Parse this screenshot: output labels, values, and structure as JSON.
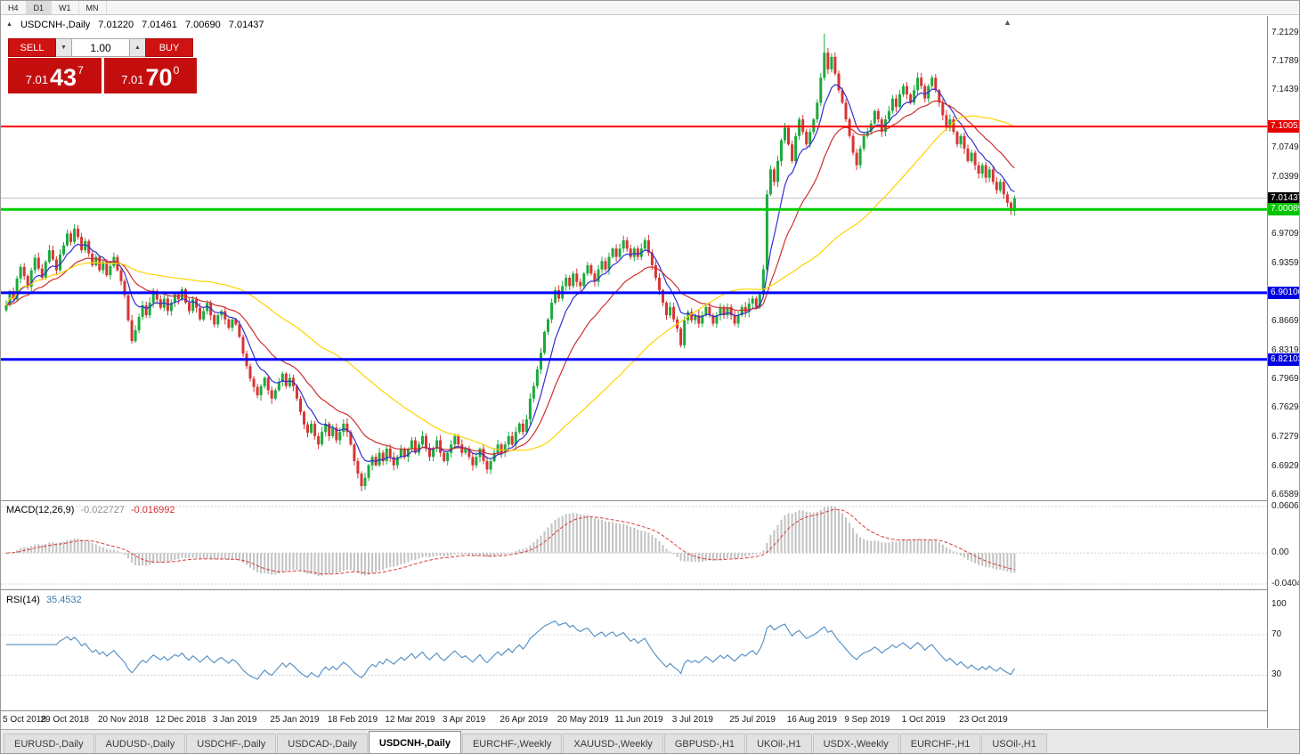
{
  "toolbar": {
    "timeframes": [
      "H4",
      "D1",
      "W1",
      "MN"
    ],
    "active": "D1"
  },
  "icons": {
    "collapse_triangle": "▲",
    "chart_shift_marker": "▲",
    "volume_down": "▼",
    "volume_up": "▲"
  },
  "chart_header": {
    "symbol": "USDCNH-,Daily",
    "open": "7.01220",
    "high": "7.01461",
    "low": "7.00690",
    "close": "7.01437"
  },
  "trade_panel": {
    "sell_label": "SELL",
    "buy_label": "BUY",
    "volume": "1.00",
    "sell_price_prefix": "7.01",
    "sell_price_main": "43",
    "sell_price_sup": "7",
    "buy_price_prefix": "7.01",
    "buy_price_main": "70",
    "buy_price_sup": "0"
  },
  "price_axis": {
    "ticks": [
      {
        "value": 7.2129,
        "label": "7.21290"
      },
      {
        "value": 7.1789,
        "label": "7.17890"
      },
      {
        "value": 7.1439,
        "label": "7.14390"
      },
      {
        "value": 7.0749,
        "label": "7.07490"
      },
      {
        "value": 7.0399,
        "label": "7.03990"
      },
      {
        "value": 6.9709,
        "label": "6.97090"
      },
      {
        "value": 6.9359,
        "label": "6.93590"
      },
      {
        "value": 6.8669,
        "label": "6.86690"
      },
      {
        "value": 6.8319,
        "label": "6.83190"
      },
      {
        "value": 6.7969,
        "label": "6.79690"
      },
      {
        "value": 6.7629,
        "label": "6.76290"
      },
      {
        "value": 6.7279,
        "label": "6.72790"
      },
      {
        "value": 6.6929,
        "label": "6.69290"
      },
      {
        "value": 6.6589,
        "label": "6.65890"
      }
    ],
    "badges": [
      {
        "value": 7.10051,
        "label": "7.10051",
        "color": "#e60000",
        "text_color": "#ffffff"
      },
      {
        "value": 7.01437,
        "label": "7.01437",
        "color": "#000000",
        "text_color": "#ffffff"
      },
      {
        "value": 7.00089,
        "label": "7.00089",
        "color": "#00c400",
        "text_color": "#ffffff"
      },
      {
        "value": 6.901,
        "label": "6.90100",
        "color": "#0000e0",
        "text_color": "#ffffff"
      },
      {
        "value": 6.82103,
        "label": "6.82103",
        "color": "#0000e0",
        "text_color": "#ffffff"
      }
    ]
  },
  "chart_data": {
    "type": "candlestick",
    "symbol": "USDCNH-",
    "timeframe": "Daily",
    "y_range": [
      6.652,
      7.233
    ],
    "current_price": 7.01437,
    "candles_per_label": 16,
    "x_labels": [
      "5 Oct 2018",
      "29 Oct 2018",
      "20 Nov 2018",
      "12 Dec 2018",
      "3 Jan 2019",
      "25 Jan 2019",
      "18 Feb 2019",
      "12 Mar 2019",
      "3 Apr 2019",
      "26 Apr 2019",
      "20 May 2019",
      "11 Jun 2019",
      "3 Jul 2019",
      "25 Jul 2019",
      "16 Aug 2019",
      "9 Sep 2019",
      "1 Oct 2019",
      "23 Oct 2019"
    ],
    "closes": [
      6.886,
      6.903,
      6.893,
      6.918,
      6.932,
      6.921,
      6.908,
      6.928,
      6.943,
      6.93,
      6.919,
      6.938,
      6.952,
      6.941,
      6.928,
      6.947,
      6.958,
      6.972,
      6.962,
      6.978,
      6.968,
      6.952,
      6.963,
      6.948,
      6.934,
      6.944,
      6.928,
      6.938,
      6.922,
      6.933,
      6.944,
      6.928,
      6.915,
      6.898,
      6.868,
      6.843,
      6.856,
      6.872,
      6.886,
      6.874,
      6.889,
      6.903,
      6.893,
      6.883,
      6.894,
      6.879,
      6.889,
      6.899,
      6.893,
      6.905,
      6.889,
      6.879,
      6.893,
      6.883,
      6.869,
      6.879,
      6.889,
      6.874,
      6.863,
      6.874,
      6.879,
      6.869,
      6.859,
      6.869,
      6.863,
      6.848,
      6.828,
      6.813,
      6.798,
      6.788,
      6.778,
      6.789,
      6.799,
      6.784,
      6.774,
      6.784,
      6.794,
      6.804,
      6.789,
      6.799,
      6.789,
      6.774,
      6.758,
      6.743,
      6.733,
      6.744,
      6.729,
      6.719,
      6.734,
      6.744,
      6.729,
      6.739,
      6.724,
      6.734,
      6.744,
      6.734,
      6.719,
      6.699,
      6.684,
      6.669,
      6.679,
      6.694,
      6.704,
      6.694,
      6.709,
      6.699,
      6.714,
      6.704,
      6.694,
      6.704,
      6.714,
      6.704,
      6.714,
      6.724,
      6.709,
      6.719,
      6.729,
      6.714,
      6.704,
      6.714,
      6.724,
      6.709,
      6.699,
      6.709,
      6.719,
      6.729,
      6.719,
      6.709,
      6.714,
      6.704,
      6.694,
      6.704,
      6.714,
      6.699,
      6.689,
      6.699,
      6.709,
      6.719,
      6.709,
      6.719,
      6.729,
      6.719,
      6.734,
      6.744,
      6.734,
      6.749,
      6.774,
      6.789,
      6.809,
      6.829,
      6.854,
      6.869,
      6.889,
      6.904,
      6.894,
      6.909,
      6.919,
      6.909,
      6.924,
      6.914,
      6.909,
      6.924,
      6.934,
      6.924,
      6.914,
      6.929,
      6.939,
      6.929,
      6.944,
      6.954,
      6.944,
      6.954,
      6.964,
      6.954,
      6.944,
      6.954,
      6.944,
      6.954,
      6.964,
      6.949,
      6.934,
      6.919,
      6.904,
      6.889,
      6.874,
      6.884,
      6.869,
      6.858,
      6.838,
      6.868,
      6.878,
      6.868,
      6.874,
      6.864,
      6.874,
      6.884,
      6.874,
      6.864,
      6.874,
      6.884,
      6.874,
      6.884,
      6.874,
      6.864,
      6.874,
      6.884,
      6.878,
      6.888,
      6.894,
      6.884,
      6.899,
      6.929,
      7.019,
      7.049,
      7.034,
      7.059,
      7.084,
      7.099,
      7.079,
      7.059,
      7.089,
      7.109,
      7.094,
      7.079,
      7.094,
      7.109,
      7.129,
      7.159,
      7.189,
      7.169,
      7.184,
      7.164,
      7.144,
      7.129,
      7.109,
      7.089,
      7.069,
      7.054,
      7.074,
      7.089,
      7.094,
      7.104,
      7.119,
      7.109,
      7.094,
      7.109,
      7.119,
      7.134,
      7.124,
      7.139,
      7.149,
      7.139,
      7.129,
      7.144,
      7.159,
      7.149,
      7.134,
      7.149,
      7.159,
      7.144,
      7.129,
      7.114,
      7.099,
      7.109,
      7.094,
      7.079,
      7.089,
      7.074,
      7.059,
      7.069,
      7.054,
      7.044,
      7.054,
      7.039,
      7.049,
      7.034,
      7.024,
      7.034,
      7.019,
      7.009,
      6.999,
      7.01437
    ],
    "spikes": [
      {
        "i": 99,
        "low": 6.663
      },
      {
        "i": 212,
        "low": 6.928
      },
      {
        "i": 228,
        "high": 7.212
      },
      {
        "i": 281,
        "low": 6.9935
      }
    ],
    "hlines": [
      {
        "value": 7.10051,
        "color": "#ff0000",
        "width": 2
      },
      {
        "value": 7.00089,
        "color": "#00cc00",
        "width": 3
      },
      {
        "value": 6.901,
        "color": "#0000ff",
        "width": 3
      },
      {
        "value": 6.82103,
        "color": "#0000ff",
        "width": 3
      }
    ],
    "moving_averages": [
      {
        "name": "fast",
        "type": "ema",
        "period": 8,
        "color": "#3030cf"
      },
      {
        "name": "medium",
        "type": "ema",
        "period": 21,
        "color": "#cf3030"
      },
      {
        "name": "slow",
        "type": "sma",
        "period": 55,
        "color": "#ffd200"
      }
    ],
    "colors": {
      "up": "#1caa3c",
      "down": "#d93434",
      "macd_hist": "#c2c2c2",
      "macd_signal": "#d64040",
      "rsi": "#4e8cc2",
      "current_price_line": "#b4b4b4"
    }
  },
  "macd_panel": {
    "label": "MACD(12,26,9)",
    "value_macd": "-0.022727",
    "value_signal": "-0.016992",
    "fast": 12,
    "slow": 26,
    "signal": 9,
    "y_max": 0.060687,
    "y_min": -0.040431,
    "axis_labels": [
      {
        "value": 0.060687,
        "label": "0.060687"
      },
      {
        "value": 0,
        "label": "0.00"
      },
      {
        "value": -0.040431,
        "label": "-0.040431"
      }
    ]
  },
  "rsi_panel": {
    "label": "RSI(14)",
    "value": "35.4532",
    "period": 14,
    "levels": [
      {
        "value": 100,
        "label": "100",
        "line": false
      },
      {
        "value": 70,
        "label": "70",
        "line": true
      },
      {
        "value": 30,
        "label": "30",
        "line": true
      }
    ]
  },
  "date_axis": {
    "labels": [
      "5 Oct 2018",
      "29 Oct 2018",
      "20 Nov 2018",
      "12 Dec 2018",
      "3 Jan 2019",
      "25 Jan 2019",
      "18 Feb 2019",
      "12 Mar 2019",
      "3 Apr 2019",
      "26 Apr 2019",
      "20 May 2019",
      "11 Jun 2019",
      "3 Jul 2019",
      "25 Jul 2019",
      "16 Aug 2019",
      "9 Sep 2019",
      "1 Oct 2019",
      "23 Oct 2019"
    ]
  },
  "tabs": [
    {
      "label": "EURUSD-,Daily",
      "active": false
    },
    {
      "label": "AUDUSD-,Daily",
      "active": false
    },
    {
      "label": "USDCHF-,Daily",
      "active": false
    },
    {
      "label": "USDCAD-,Daily",
      "active": false
    },
    {
      "label": "USDCNH-,Daily",
      "active": true
    },
    {
      "label": "EURCHF-,Weekly",
      "active": false
    },
    {
      "label": "XAUUSD-,Weekly",
      "active": false
    },
    {
      "label": "GBPUSD-,H1",
      "active": false
    },
    {
      "label": "UKOil-,H1",
      "active": false
    },
    {
      "label": "USDX-,Weekly",
      "active": false
    },
    {
      "label": "EURCHF-,H1",
      "active": false
    },
    {
      "label": "USOil-,H1",
      "active": false
    }
  ]
}
